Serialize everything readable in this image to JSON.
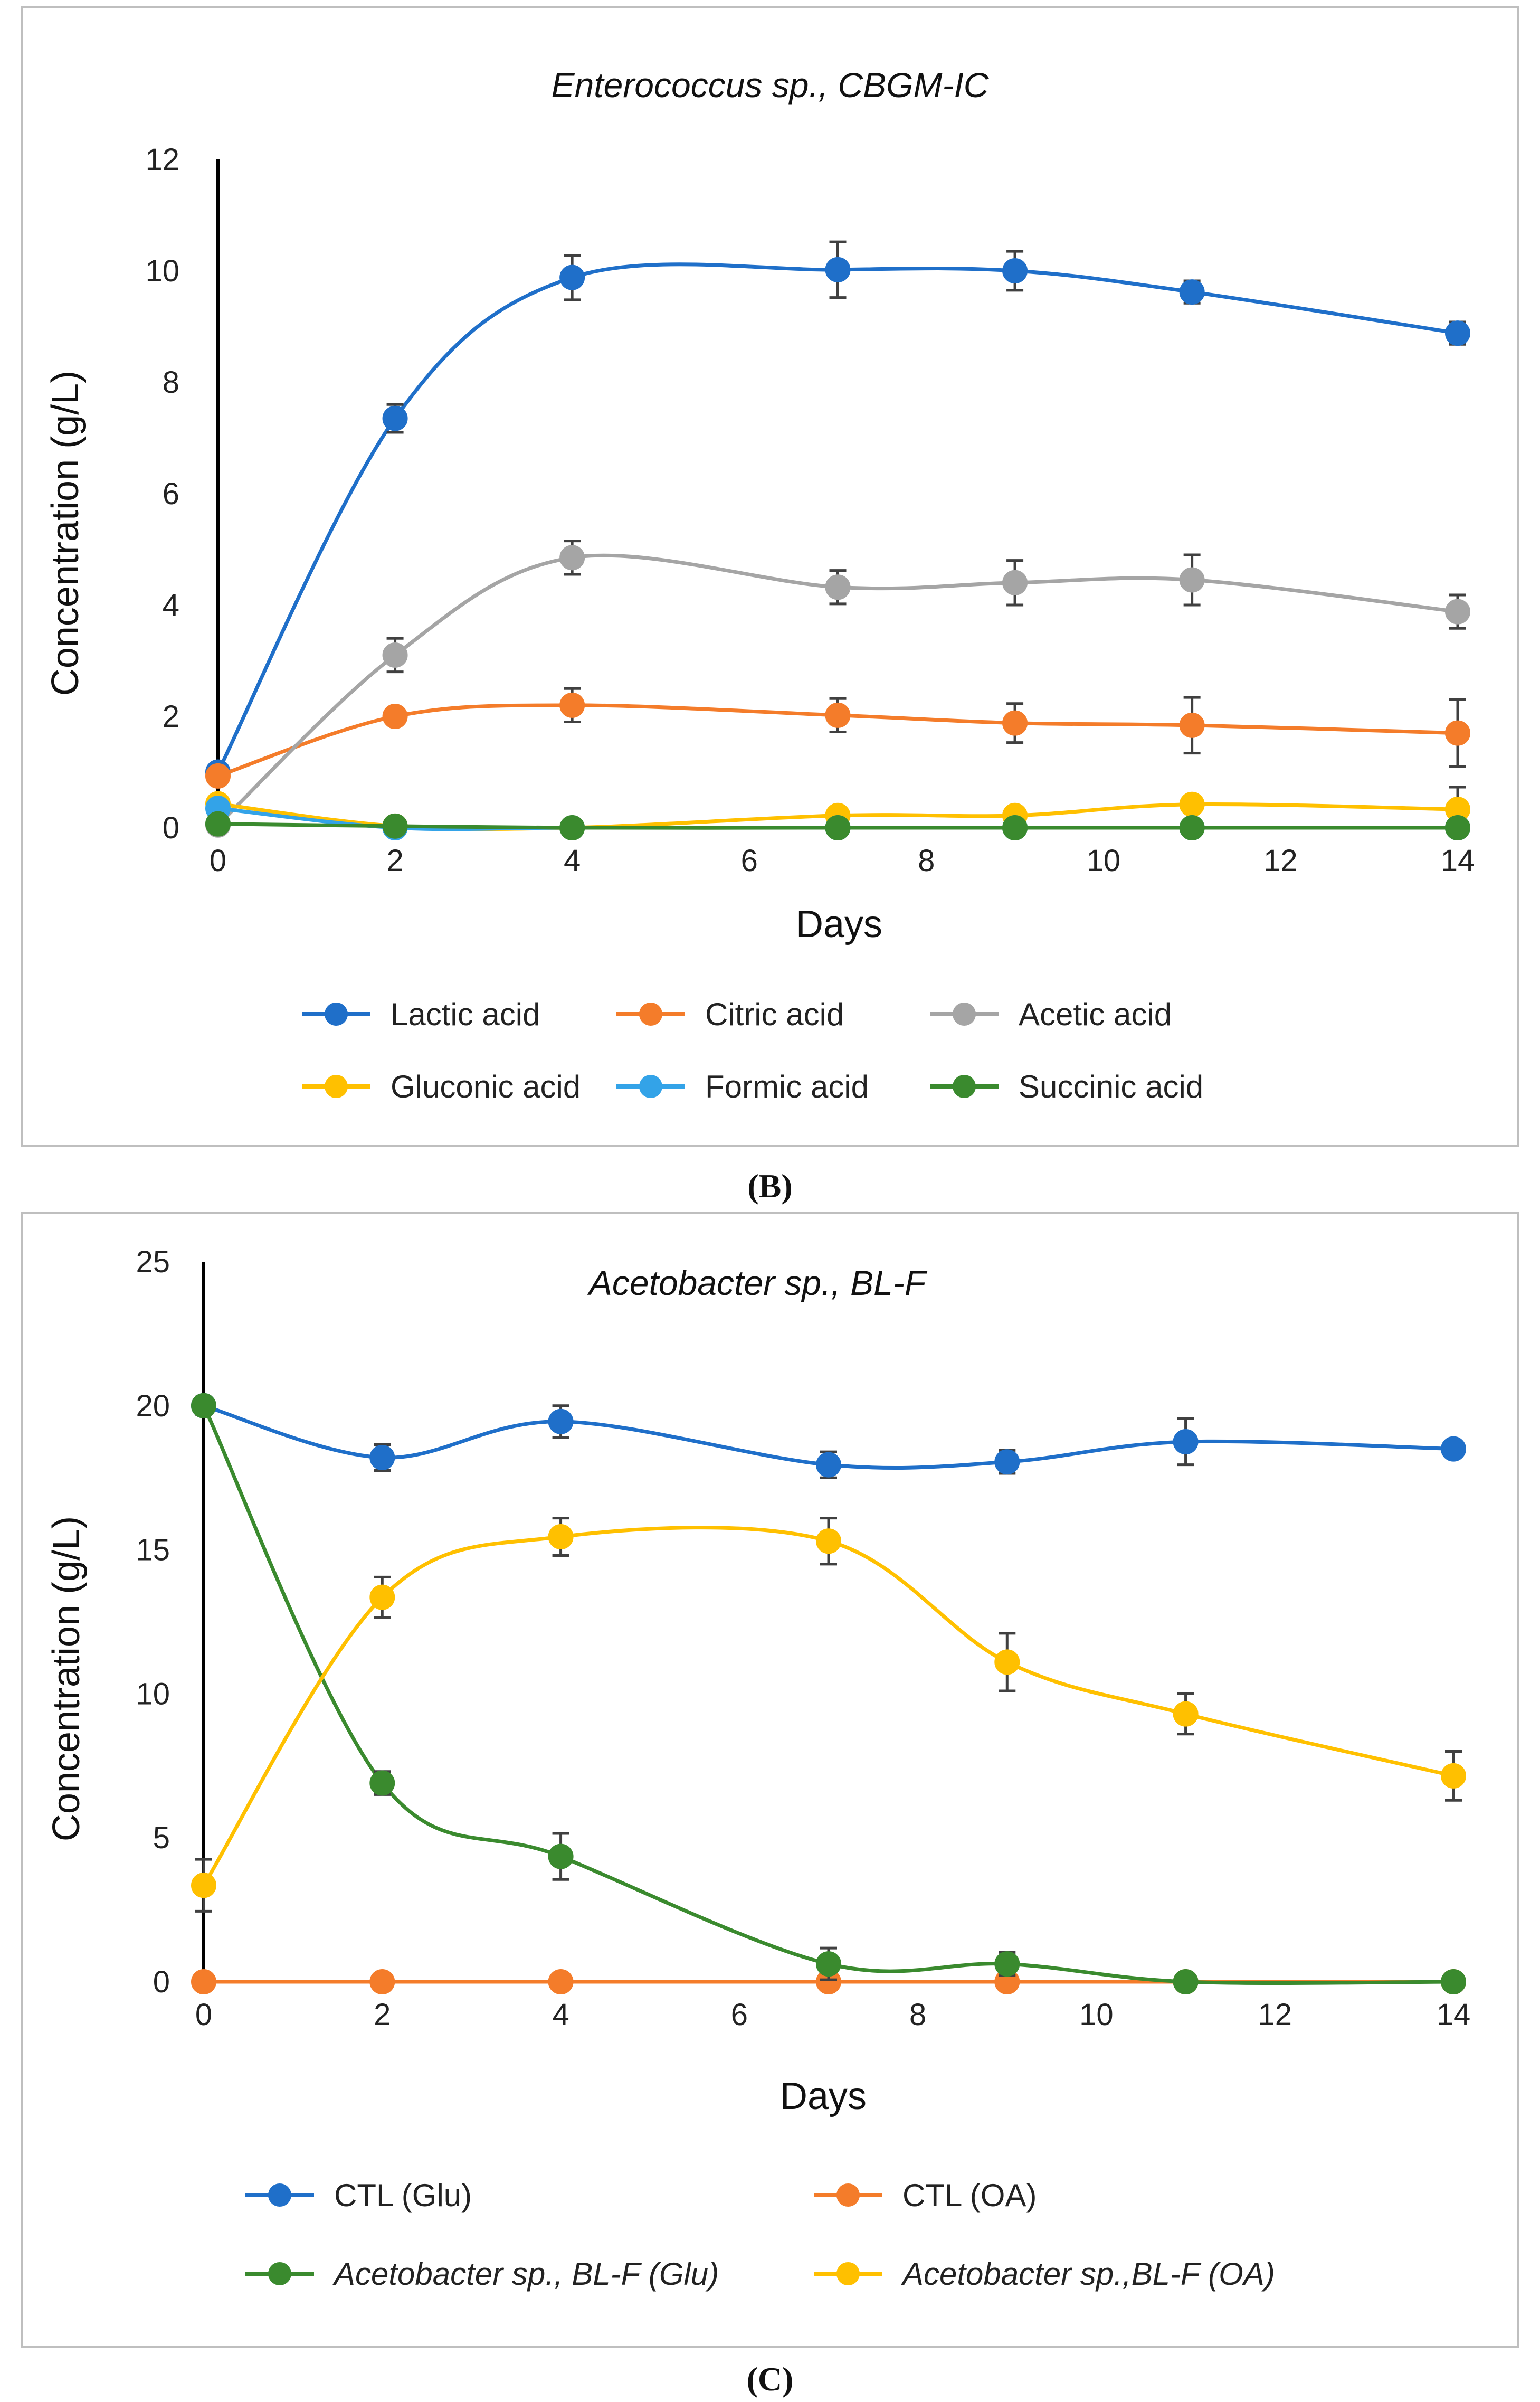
{
  "figure_labels": {
    "b": "(B)",
    "c": "(C)"
  },
  "chart_data": [
    {
      "id": "B",
      "type": "line",
      "title": "Enterococcus sp., CBGM-IC",
      "xlabel": "Days",
      "ylabel": "Concentration (g/L)",
      "xlim": [
        0,
        14
      ],
      "ylim": [
        0,
        12
      ],
      "xticks": [
        0,
        2,
        4,
        6,
        8,
        10,
        12,
        14
      ],
      "yticks": [
        0,
        2,
        4,
        6,
        8,
        10,
        12
      ],
      "x": [
        0,
        2,
        4,
        7,
        9,
        11,
        14
      ],
      "grid": false,
      "legend_position": "bottom",
      "series": [
        {
          "name": "Lactic acid",
          "color": "#1f6fc9",
          "values": [
            1.0,
            7.35,
            9.88,
            10.02,
            10.0,
            9.62,
            8.88
          ],
          "errors": [
            0.05,
            0.25,
            0.4,
            0.5,
            0.35,
            0.2,
            0.2
          ]
        },
        {
          "name": "Citric acid",
          "color": "#f47c2a",
          "values": [
            0.93,
            2.0,
            2.2,
            2.02,
            1.88,
            1.84,
            1.7
          ],
          "errors": [
            0.05,
            0.1,
            0.3,
            0.3,
            0.35,
            0.5,
            0.6
          ]
        },
        {
          "name": "Acetic acid",
          "color": "#a5a5a5",
          "values": [
            0.05,
            3.1,
            4.85,
            4.32,
            4.4,
            4.45,
            3.88
          ],
          "errors": [
            0.02,
            0.3,
            0.3,
            0.3,
            0.4,
            0.45,
            0.3
          ]
        },
        {
          "name": "Gluconic acid",
          "color": "#ffc000",
          "values": [
            0.43,
            0.03,
            0.0,
            0.22,
            0.22,
            0.42,
            0.33
          ],
          "errors": [
            0.02,
            0.02,
            0.02,
            0.1,
            0.05,
            0.1,
            0.4
          ]
        },
        {
          "name": "Formic acid",
          "color": "#33a3e8",
          "values": [
            0.35,
            0.0,
            0.0,
            0.0,
            0.0,
            0.0,
            0.0
          ],
          "errors": [
            0.02,
            0.0,
            0.0,
            0.0,
            0.0,
            0.0,
            0.0
          ]
        },
        {
          "name": "Succinic acid",
          "color": "#3a8a2e",
          "values": [
            0.07,
            0.03,
            0.0,
            0.0,
            0.0,
            0.0,
            0.0
          ],
          "errors": [
            0.02,
            0.01,
            0.0,
            0.0,
            0.0,
            0.0,
            0.0
          ]
        }
      ]
    },
    {
      "id": "C",
      "type": "line",
      "title": "Acetobacter sp., BL-F",
      "xlabel": "Days",
      "ylabel": "Concentration (g/L)",
      "xlim": [
        0,
        14
      ],
      "ylim": [
        0,
        25
      ],
      "xticks": [
        0,
        2,
        4,
        6,
        8,
        10,
        12,
        14
      ],
      "yticks": [
        0,
        5,
        10,
        15,
        20,
        25
      ],
      "x": [
        0,
        2,
        4,
        7,
        9,
        11,
        14
      ],
      "grid": false,
      "legend_position": "bottom",
      "series": [
        {
          "name": "CTL (Glu)",
          "italic_part": "",
          "rest": "CTL (Glu)",
          "color": "#1f6fc9",
          "values": [
            20.0,
            18.2,
            19.45,
            17.95,
            18.05,
            18.75,
            18.5
          ],
          "errors": [
            0.3,
            0.45,
            0.55,
            0.45,
            0.4,
            0.8,
            0.2
          ]
        },
        {
          "name": "CTL (OA)",
          "italic_part": "",
          "rest": "CTL (OA)",
          "color": "#f47c2a",
          "values": [
            0,
            0,
            0,
            0,
            0,
            0,
            0
          ],
          "errors": [
            0,
            0,
            0,
            0,
            0,
            0,
            0
          ]
        },
        {
          "name": "Acetobacter sp., BL-F  (Glu)",
          "italic_part": "Acetobacter sp., BL-F",
          "rest": "  (Glu)",
          "color": "#3a8a2e",
          "values": [
            20.0,
            6.9,
            4.35,
            0.62,
            0.62,
            0.0,
            0.0
          ],
          "errors": [
            0.3,
            0.4,
            0.8,
            0.55,
            0.4,
            0.0,
            0.0
          ]
        },
        {
          "name": "Acetobacter sp.,BL-F  (OA)",
          "italic_part": "Acetobacter sp.,BL-F",
          "rest": "  (OA)",
          "color": "#ffc000",
          "values": [
            3.35,
            13.35,
            15.45,
            15.3,
            11.1,
            9.3,
            7.15
          ],
          "errors": [
            0.9,
            0.7,
            0.65,
            0.8,
            1.0,
            0.7,
            0.85
          ]
        }
      ]
    }
  ]
}
